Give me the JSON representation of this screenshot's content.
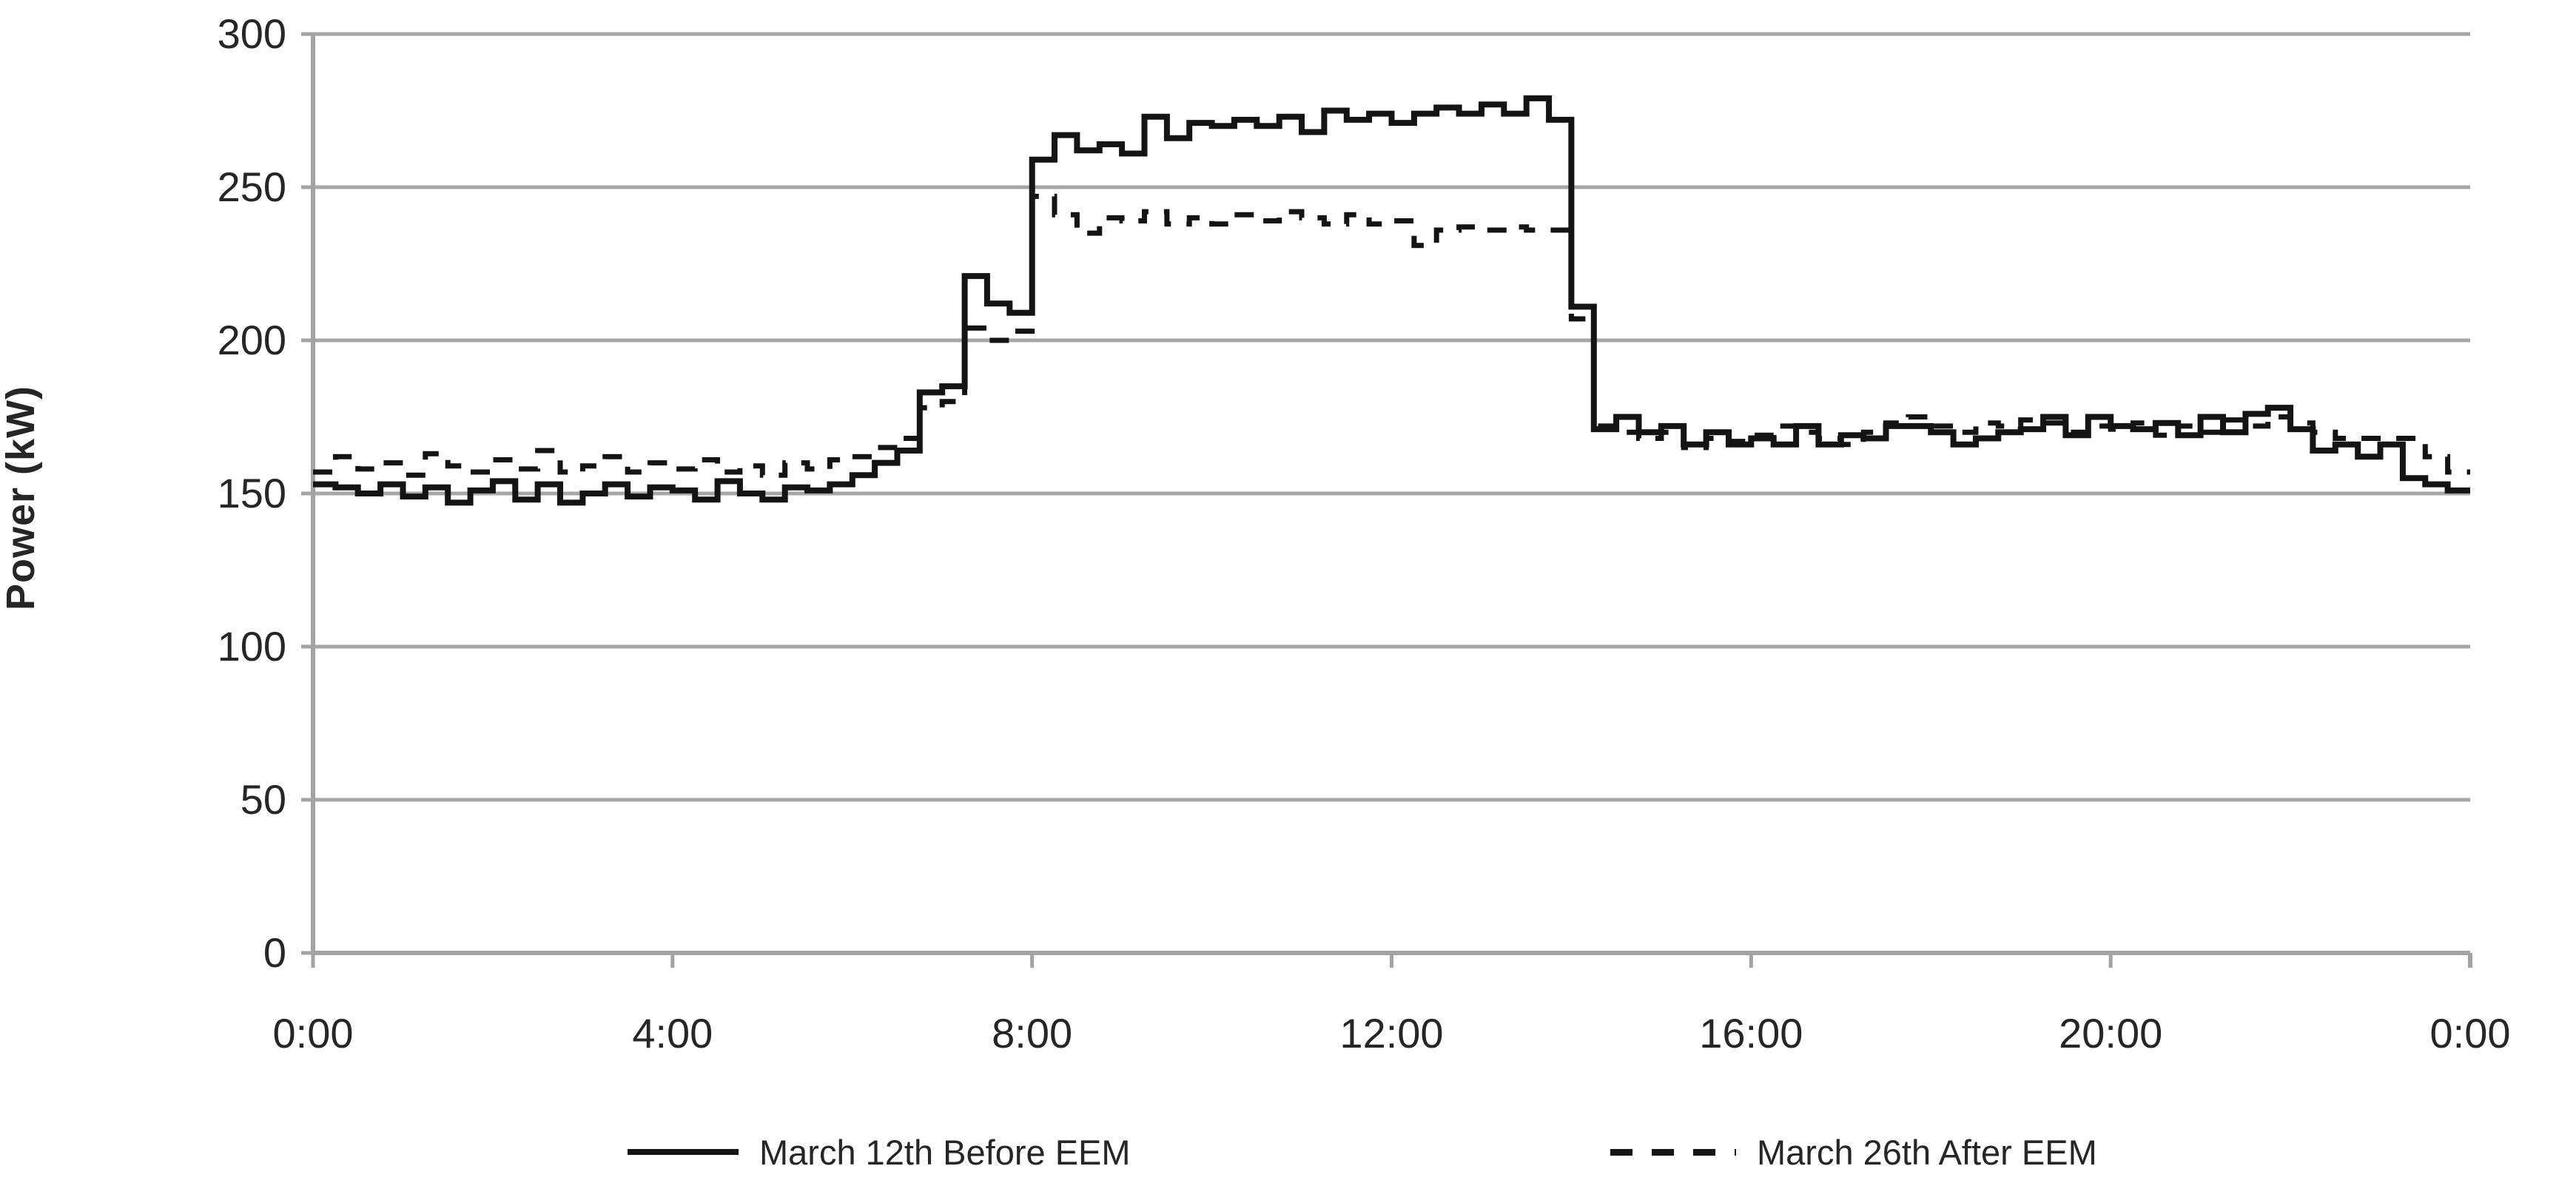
{
  "chart_data": {
    "type": "line",
    "subtype": "step-after",
    "title": "",
    "xlabel": "",
    "ylabel": "Power (kW)",
    "y_ticks": [
      0,
      50,
      100,
      150,
      200,
      250,
      300
    ],
    "ylim": [
      0,
      300
    ],
    "x_tick_labels": [
      "0:00",
      "4:00",
      "8:00",
      "12:00",
      "16:00",
      "20:00",
      "0:00"
    ],
    "x_range_hours": [
      0,
      24
    ],
    "interval_minutes": 15,
    "grid": "horizontal",
    "legend_position": "bottom",
    "axis_color": "#a3a3a3",
    "grid_color": "#a6a6a6",
    "text_color": "#262626",
    "series": [
      {
        "name": "March 12th Before EEM",
        "style": "solid",
        "color": "#141414",
        "values": [
          153,
          152,
          150,
          153,
          149,
          152,
          147,
          151,
          154,
          148,
          153,
          147,
          150,
          153,
          149,
          152,
          151,
          148,
          154,
          150,
          148,
          152,
          151,
          153,
          156,
          160,
          164,
          183,
          185,
          221,
          212,
          209,
          259,
          267,
          262,
          264,
          261,
          273,
          266,
          271,
          270,
          272,
          270,
          273,
          268,
          275,
          272,
          274,
          271,
          274,
          276,
          274,
          277,
          274,
          279,
          272,
          211,
          171,
          175,
          170,
          172,
          166,
          170,
          166,
          168,
          166,
          172,
          166,
          169,
          168,
          172,
          172,
          170,
          166,
          168,
          170,
          171,
          175,
          169,
          175,
          172,
          171,
          173,
          169,
          175,
          170,
          176,
          178,
          171,
          164,
          166,
          162,
          166,
          155,
          153,
          151
        ]
      },
      {
        "name": "March 26th After EEM",
        "style": "dashed",
        "color": "#141414",
        "values": [
          157,
          162,
          158,
          160,
          156,
          163,
          159,
          157,
          161,
          158,
          164,
          157,
          159,
          162,
          157,
          160,
          158,
          161,
          157,
          159,
          156,
          160,
          158,
          161,
          162,
          165,
          168,
          178,
          180,
          204,
          200,
          203,
          247,
          241,
          235,
          240,
          239,
          242,
          238,
          240,
          238,
          241,
          239,
          242,
          240,
          238,
          241,
          238,
          239,
          231,
          236,
          237,
          236,
          237,
          236,
          236,
          207,
          172,
          170,
          168,
          170,
          165,
          168,
          167,
          169,
          172,
          170,
          168,
          166,
          170,
          173,
          175,
          172,
          170,
          173,
          172,
          174,
          173,
          170,
          172,
          171,
          173,
          169,
          172,
          170,
          174,
          172,
          175,
          173,
          170,
          168,
          168,
          168,
          168,
          162,
          157
        ]
      }
    ]
  },
  "legend": {
    "items": [
      {
        "label": "March 12th Before EEM",
        "style": "solid"
      },
      {
        "label": "March 26th After EEM",
        "style": "dashed"
      }
    ]
  }
}
